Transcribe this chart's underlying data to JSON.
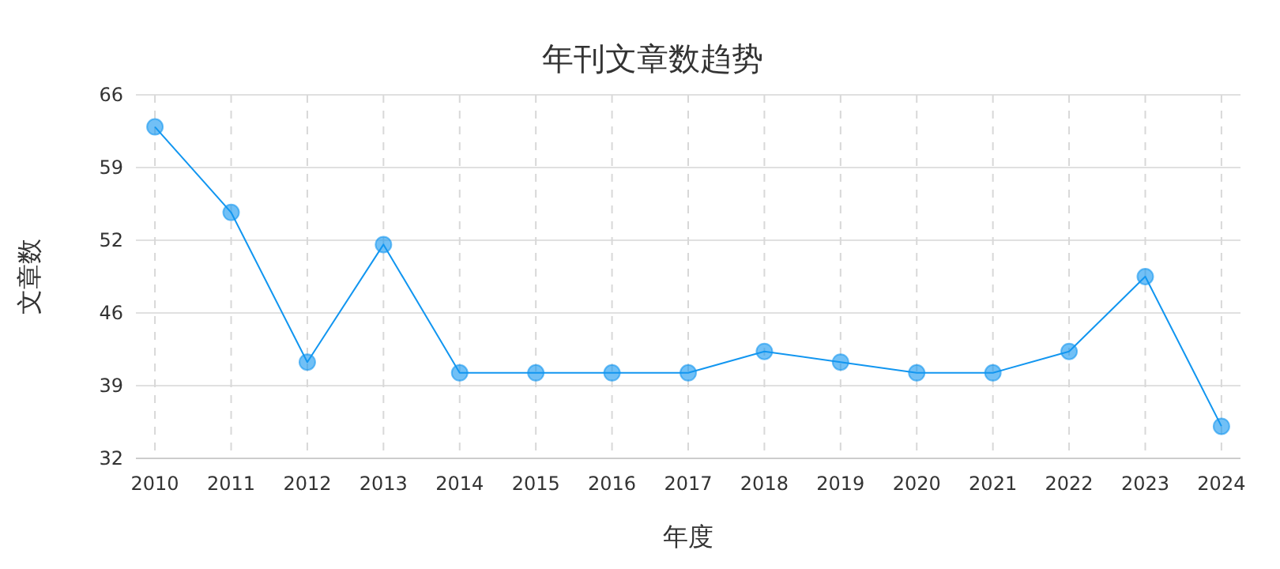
{
  "chart_data": {
    "type": "line",
    "title": "年刊文章数趋势",
    "xlabel": "年度",
    "ylabel": "文章数",
    "categories": [
      "2010",
      "2011",
      "2012",
      "2013",
      "2014",
      "2015",
      "2016",
      "2017",
      "2018",
      "2019",
      "2020",
      "2021",
      "2022",
      "2023",
      "2024"
    ],
    "series": [
      {
        "color": "#1296f0",
        "values": [
          63,
          55,
          41,
          52,
          40,
          40,
          40,
          40,
          42,
          41,
          40,
          40,
          42,
          49,
          35
        ]
      }
    ],
    "ylim": [
      32,
      66
    ],
    "yticks": [
      32,
      {
        "value": 38.8,
        "label": "39"
      },
      {
        "value": 45.6,
        "label": "46"
      },
      {
        "value": 52.4,
        "label": "52"
      },
      {
        "value": 59.2,
        "label": "59"
      },
      66
    ],
    "grid": true,
    "marker": "circle"
  }
}
